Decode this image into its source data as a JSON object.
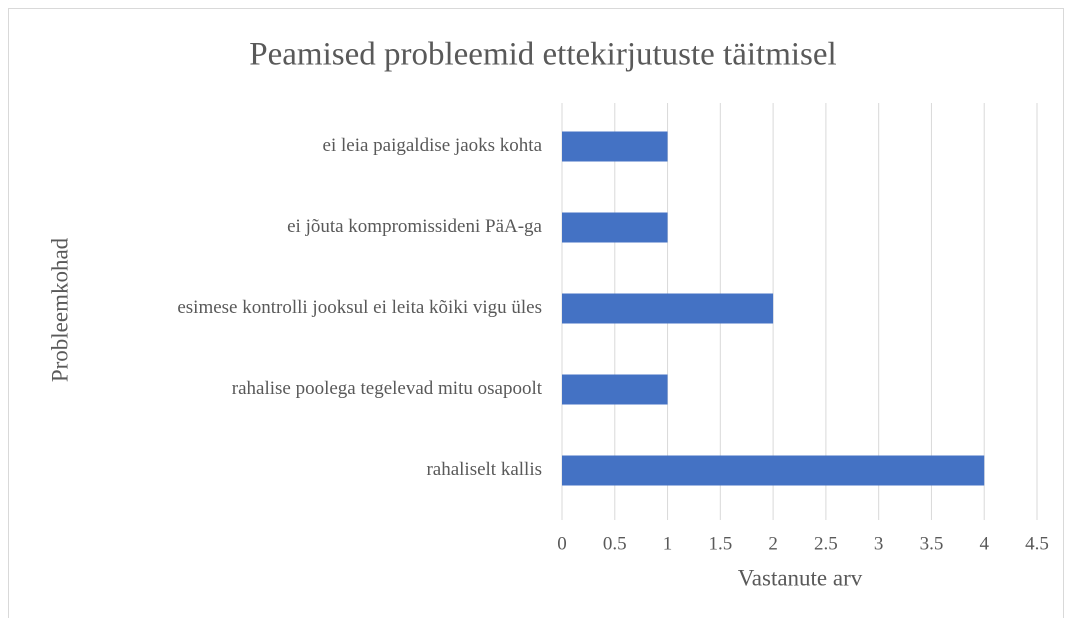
{
  "chart_data": {
    "type": "barh",
    "title": "Peamised probleemid ettekirjutuste täitmisel",
    "xlabel": "Vastanute arv",
    "ylabel": "Probleemkohad",
    "categories": [
      "ei leia paigaldise jaoks kohta",
      "ei jõuta kompromissideni PäA-ga",
      "esimese kontrolli jooksul ei leita kõiki vigu üles",
      "rahalise poolega tegelevad mitu osapoolt",
      "rahaliselt kallis"
    ],
    "values": [
      1,
      1,
      2,
      1,
      4
    ],
    "color": "#4472c4",
    "xlim": [
      0,
      4.5
    ],
    "xticks": [
      0,
      0.5,
      1,
      1.5,
      2,
      2.5,
      3,
      3.5,
      4,
      4.5
    ],
    "grid": true
  }
}
